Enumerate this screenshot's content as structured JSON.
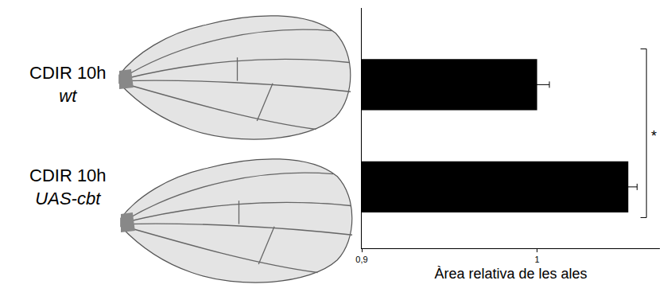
{
  "chart_data": {
    "type": "bar",
    "orientation": "horizontal",
    "categories": [
      "CDIR 10h wt",
      "CDIR 10h UAS-cbt"
    ],
    "values": [
      1.0,
      1.052
    ],
    "errors": [
      0.007,
      0.005
    ],
    "color": "#000000",
    "xlabel": "Àrea relativa de les ales",
    "xlim": [
      0.9,
      1.07
    ],
    "xticks": [
      {
        "value": 0.9,
        "label": "0,9"
      },
      1
    ],
    "grid": false,
    "significance": {
      "categories": [
        "CDIR 10h wt",
        "CDIR 10h UAS-cbt"
      ],
      "label": "*"
    }
  }
}
